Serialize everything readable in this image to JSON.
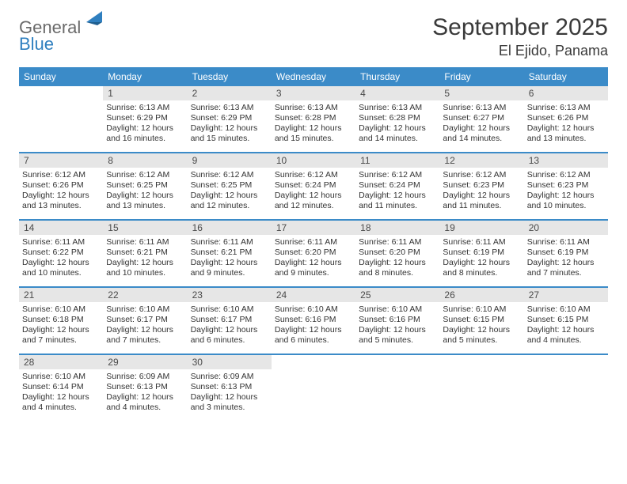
{
  "brand": {
    "part1": "General",
    "part2": "Blue"
  },
  "title": "September 2025",
  "location": "El Ejido, Panama",
  "dow_header_bg": "#3b8bc8",
  "dow_header_fg": "#ffffff",
  "daynum_bg": "#e6e6e6",
  "week_divider_color": "#3b8bc8",
  "text_color": "#333333",
  "days_of_week": [
    "Sunday",
    "Monday",
    "Tuesday",
    "Wednesday",
    "Thursday",
    "Friday",
    "Saturday"
  ],
  "weeks": [
    [
      {
        "n": "",
        "lines": []
      },
      {
        "n": "1",
        "lines": [
          "Sunrise: 6:13 AM",
          "Sunset: 6:29 PM",
          "Daylight: 12 hours",
          "and 16 minutes."
        ]
      },
      {
        "n": "2",
        "lines": [
          "Sunrise: 6:13 AM",
          "Sunset: 6:29 PM",
          "Daylight: 12 hours",
          "and 15 minutes."
        ]
      },
      {
        "n": "3",
        "lines": [
          "Sunrise: 6:13 AM",
          "Sunset: 6:28 PM",
          "Daylight: 12 hours",
          "and 15 minutes."
        ]
      },
      {
        "n": "4",
        "lines": [
          "Sunrise: 6:13 AM",
          "Sunset: 6:28 PM",
          "Daylight: 12 hours",
          "and 14 minutes."
        ]
      },
      {
        "n": "5",
        "lines": [
          "Sunrise: 6:13 AM",
          "Sunset: 6:27 PM",
          "Daylight: 12 hours",
          "and 14 minutes."
        ]
      },
      {
        "n": "6",
        "lines": [
          "Sunrise: 6:13 AM",
          "Sunset: 6:26 PM",
          "Daylight: 12 hours",
          "and 13 minutes."
        ]
      }
    ],
    [
      {
        "n": "7",
        "lines": [
          "Sunrise: 6:12 AM",
          "Sunset: 6:26 PM",
          "Daylight: 12 hours",
          "and 13 minutes."
        ]
      },
      {
        "n": "8",
        "lines": [
          "Sunrise: 6:12 AM",
          "Sunset: 6:25 PM",
          "Daylight: 12 hours",
          "and 13 minutes."
        ]
      },
      {
        "n": "9",
        "lines": [
          "Sunrise: 6:12 AM",
          "Sunset: 6:25 PM",
          "Daylight: 12 hours",
          "and 12 minutes."
        ]
      },
      {
        "n": "10",
        "lines": [
          "Sunrise: 6:12 AM",
          "Sunset: 6:24 PM",
          "Daylight: 12 hours",
          "and 12 minutes."
        ]
      },
      {
        "n": "11",
        "lines": [
          "Sunrise: 6:12 AM",
          "Sunset: 6:24 PM",
          "Daylight: 12 hours",
          "and 11 minutes."
        ]
      },
      {
        "n": "12",
        "lines": [
          "Sunrise: 6:12 AM",
          "Sunset: 6:23 PM",
          "Daylight: 12 hours",
          "and 11 minutes."
        ]
      },
      {
        "n": "13",
        "lines": [
          "Sunrise: 6:12 AM",
          "Sunset: 6:23 PM",
          "Daylight: 12 hours",
          "and 10 minutes."
        ]
      }
    ],
    [
      {
        "n": "14",
        "lines": [
          "Sunrise: 6:11 AM",
          "Sunset: 6:22 PM",
          "Daylight: 12 hours",
          "and 10 minutes."
        ]
      },
      {
        "n": "15",
        "lines": [
          "Sunrise: 6:11 AM",
          "Sunset: 6:21 PM",
          "Daylight: 12 hours",
          "and 10 minutes."
        ]
      },
      {
        "n": "16",
        "lines": [
          "Sunrise: 6:11 AM",
          "Sunset: 6:21 PM",
          "Daylight: 12 hours",
          "and 9 minutes."
        ]
      },
      {
        "n": "17",
        "lines": [
          "Sunrise: 6:11 AM",
          "Sunset: 6:20 PM",
          "Daylight: 12 hours",
          "and 9 minutes."
        ]
      },
      {
        "n": "18",
        "lines": [
          "Sunrise: 6:11 AM",
          "Sunset: 6:20 PM",
          "Daylight: 12 hours",
          "and 8 minutes."
        ]
      },
      {
        "n": "19",
        "lines": [
          "Sunrise: 6:11 AM",
          "Sunset: 6:19 PM",
          "Daylight: 12 hours",
          "and 8 minutes."
        ]
      },
      {
        "n": "20",
        "lines": [
          "Sunrise: 6:11 AM",
          "Sunset: 6:19 PM",
          "Daylight: 12 hours",
          "and 7 minutes."
        ]
      }
    ],
    [
      {
        "n": "21",
        "lines": [
          "Sunrise: 6:10 AM",
          "Sunset: 6:18 PM",
          "Daylight: 12 hours",
          "and 7 minutes."
        ]
      },
      {
        "n": "22",
        "lines": [
          "Sunrise: 6:10 AM",
          "Sunset: 6:17 PM",
          "Daylight: 12 hours",
          "and 7 minutes."
        ]
      },
      {
        "n": "23",
        "lines": [
          "Sunrise: 6:10 AM",
          "Sunset: 6:17 PM",
          "Daylight: 12 hours",
          "and 6 minutes."
        ]
      },
      {
        "n": "24",
        "lines": [
          "Sunrise: 6:10 AM",
          "Sunset: 6:16 PM",
          "Daylight: 12 hours",
          "and 6 minutes."
        ]
      },
      {
        "n": "25",
        "lines": [
          "Sunrise: 6:10 AM",
          "Sunset: 6:16 PM",
          "Daylight: 12 hours",
          "and 5 minutes."
        ]
      },
      {
        "n": "26",
        "lines": [
          "Sunrise: 6:10 AM",
          "Sunset: 6:15 PM",
          "Daylight: 12 hours",
          "and 5 minutes."
        ]
      },
      {
        "n": "27",
        "lines": [
          "Sunrise: 6:10 AM",
          "Sunset: 6:15 PM",
          "Daylight: 12 hours",
          "and 4 minutes."
        ]
      }
    ],
    [
      {
        "n": "28",
        "lines": [
          "Sunrise: 6:10 AM",
          "Sunset: 6:14 PM",
          "Daylight: 12 hours",
          "and 4 minutes."
        ]
      },
      {
        "n": "29",
        "lines": [
          "Sunrise: 6:09 AM",
          "Sunset: 6:13 PM",
          "Daylight: 12 hours",
          "and 4 minutes."
        ]
      },
      {
        "n": "30",
        "lines": [
          "Sunrise: 6:09 AM",
          "Sunset: 6:13 PM",
          "Daylight: 12 hours",
          "and 3 minutes."
        ]
      },
      {
        "n": "",
        "lines": []
      },
      {
        "n": "",
        "lines": []
      },
      {
        "n": "",
        "lines": []
      },
      {
        "n": "",
        "lines": []
      }
    ]
  ]
}
